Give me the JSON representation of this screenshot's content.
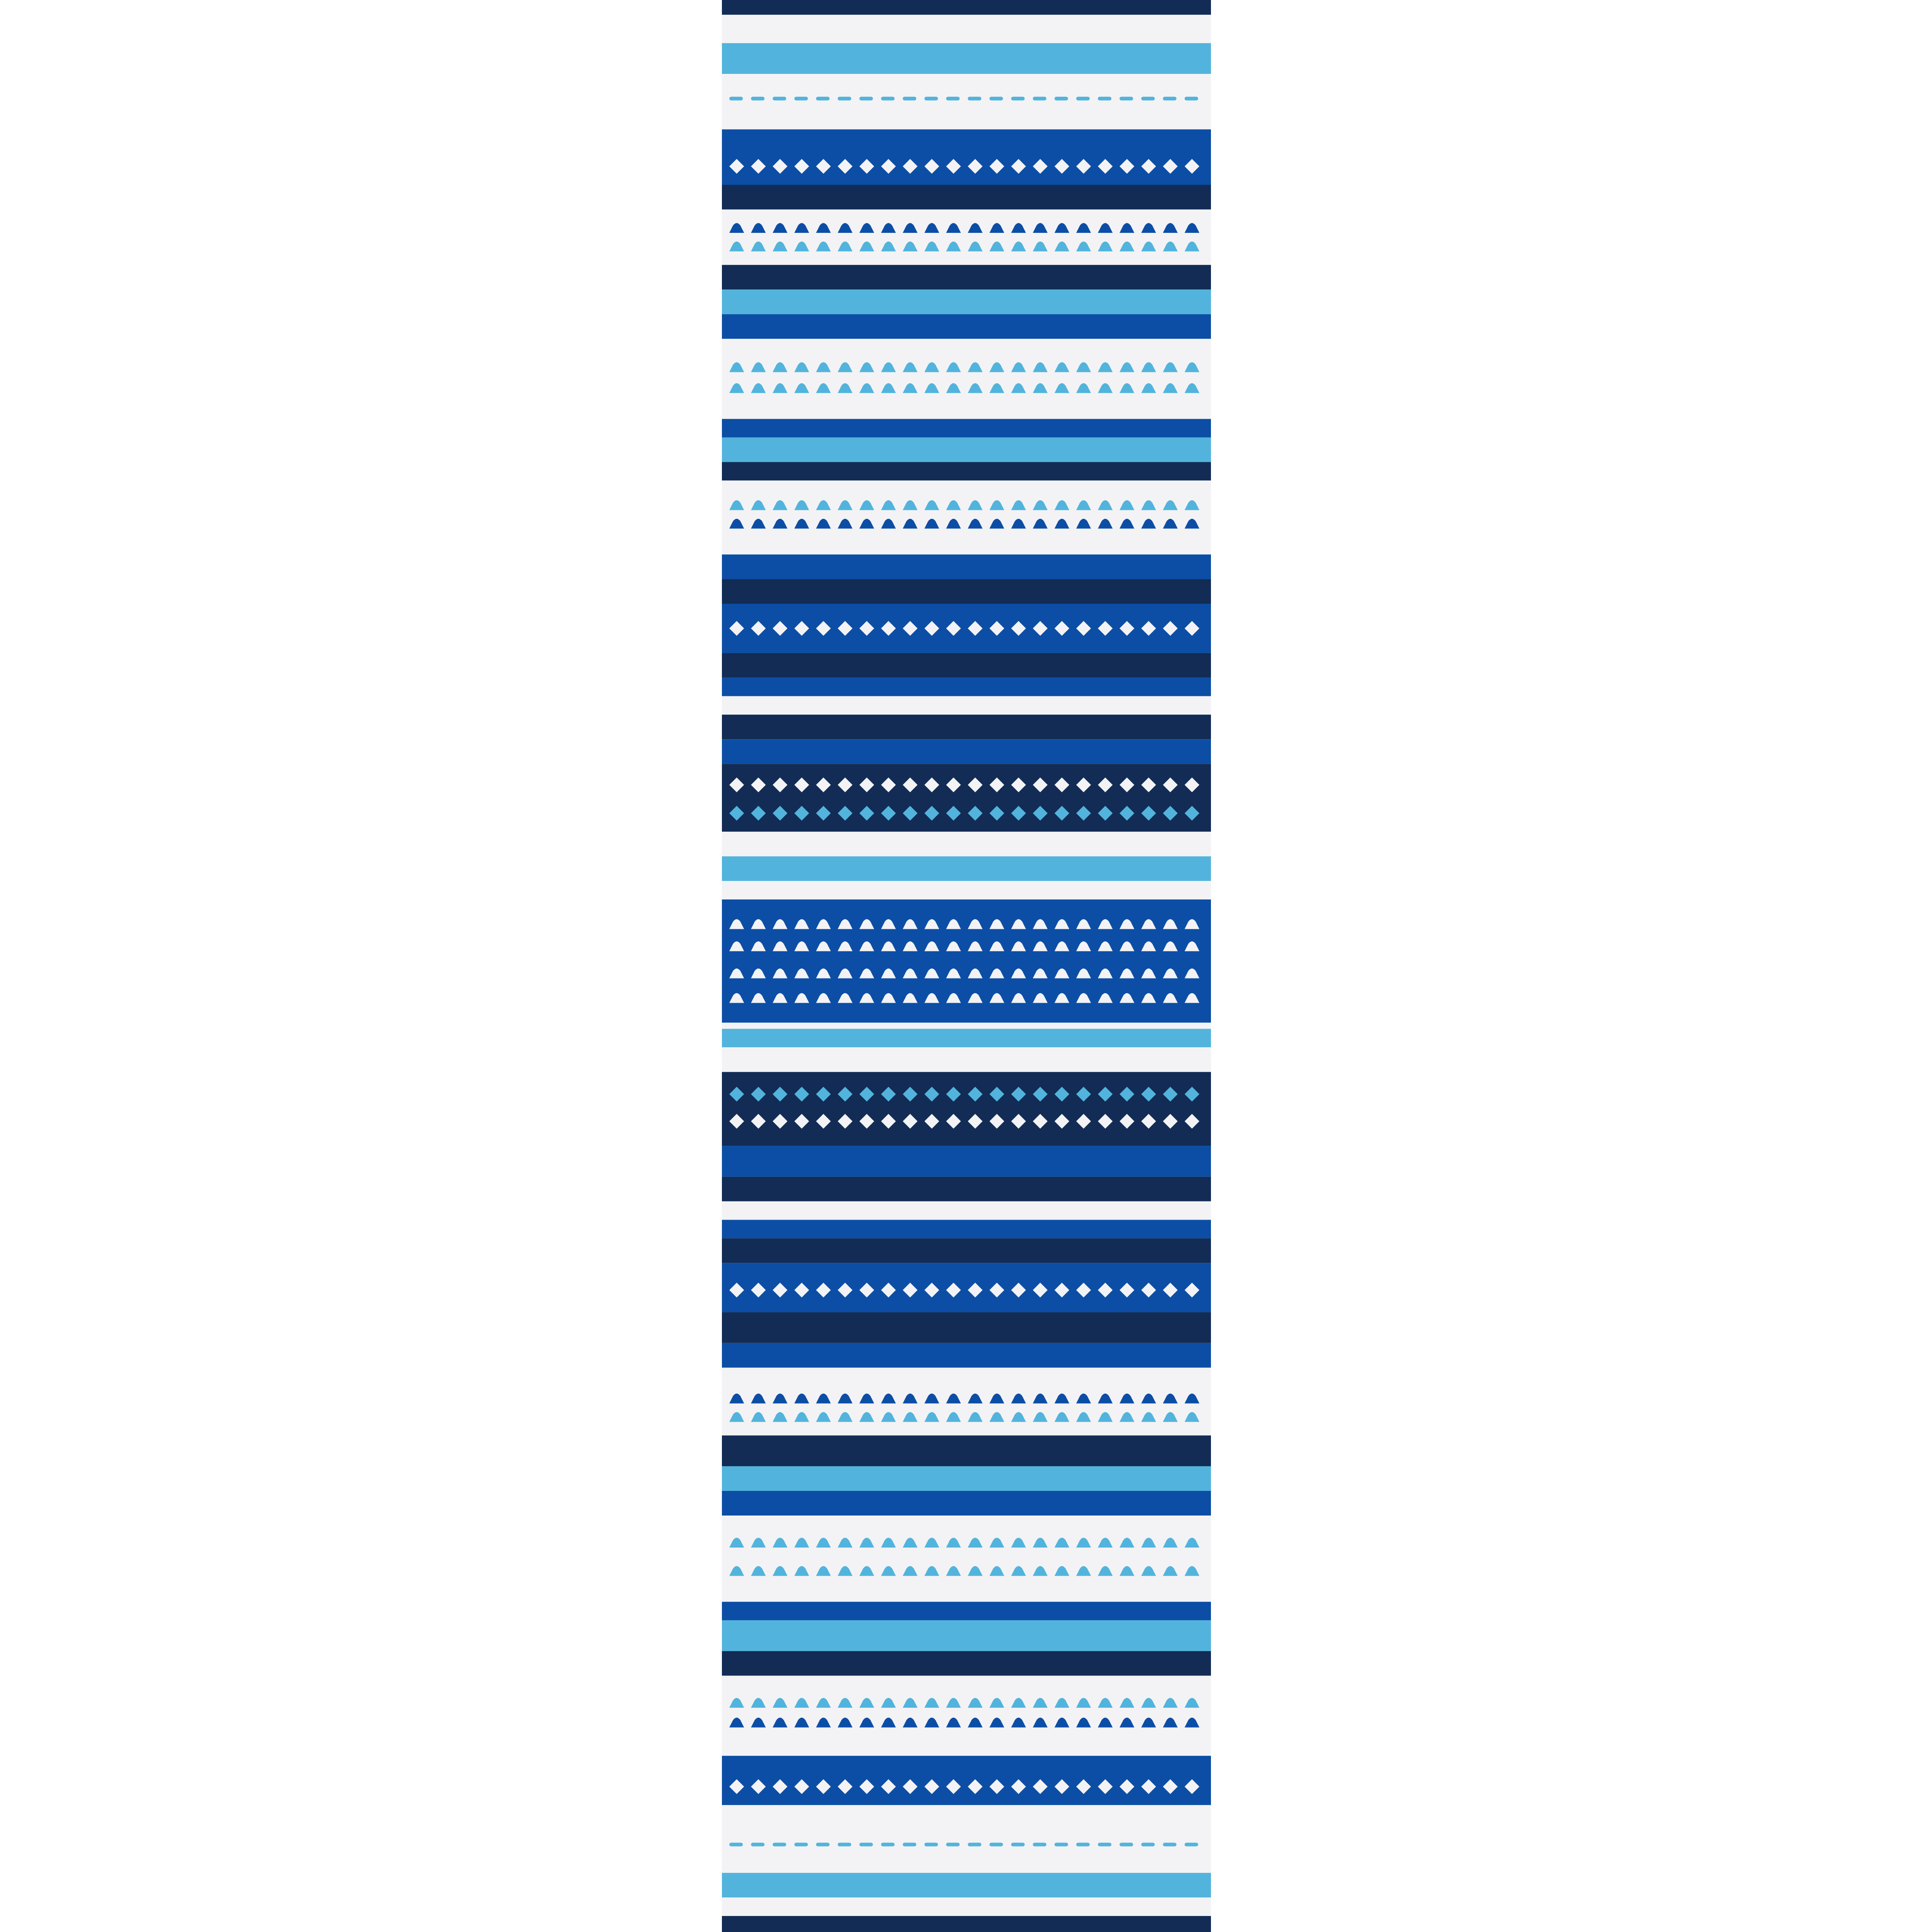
{
  "image": {
    "subject": "rug-runner",
    "palette": {
      "navy": "#122c55",
      "blue": "#0c4ea5",
      "turquoise": "#52b4dc",
      "white": "#f3f3f5",
      "background": "#ffffff"
    }
  }
}
